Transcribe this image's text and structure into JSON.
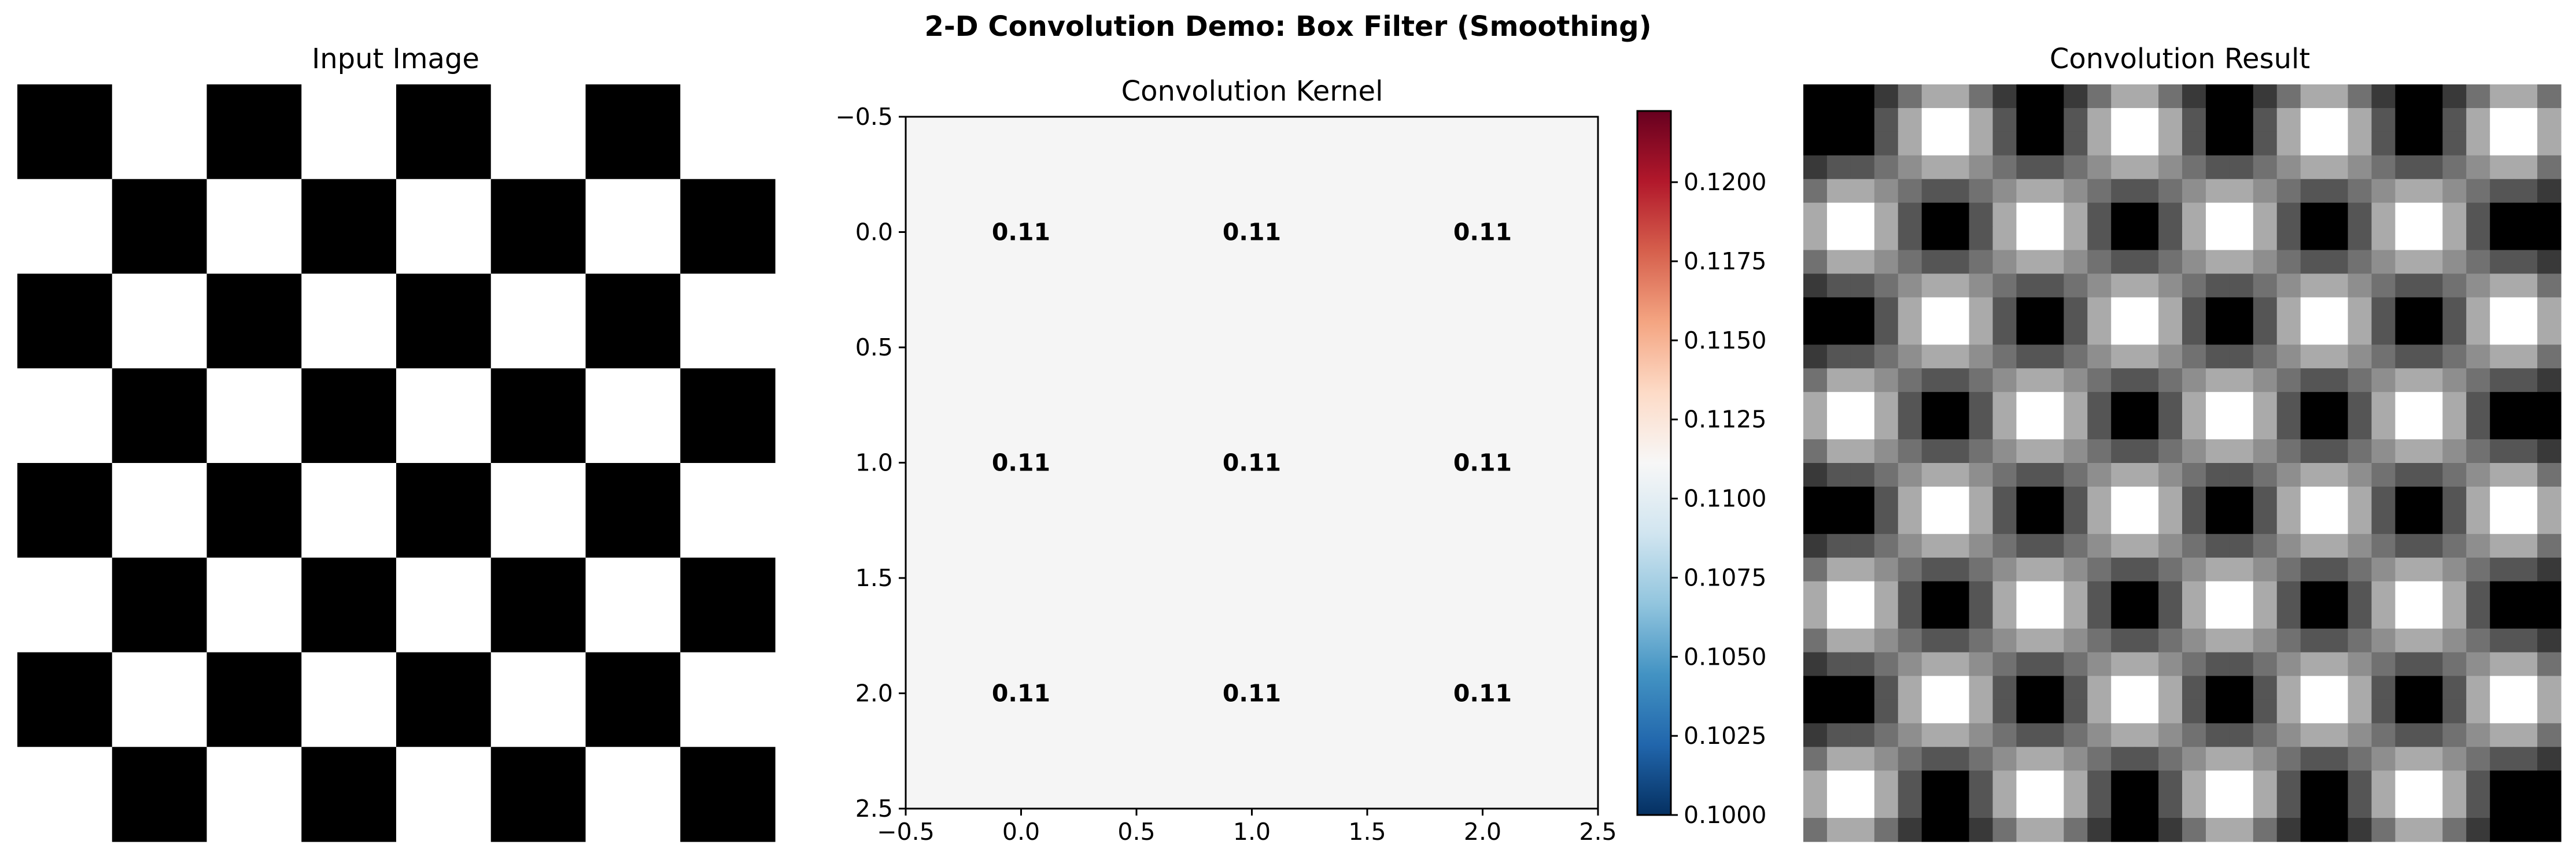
{
  "figure": {
    "title": "2-D Convolution Demo: Box Filter (Smoothing)"
  },
  "chart_data": [
    {
      "type": "heatmap",
      "title": "Input Image",
      "colormap": "gray",
      "axes": "off",
      "rows": 8,
      "cols": 8,
      "values": [
        [
          0,
          1,
          0,
          1,
          0,
          1,
          0,
          1
        ],
        [
          1,
          0,
          1,
          0,
          1,
          0,
          1,
          0
        ],
        [
          0,
          1,
          0,
          1,
          0,
          1,
          0,
          1
        ],
        [
          1,
          0,
          1,
          0,
          1,
          0,
          1,
          0
        ],
        [
          0,
          1,
          0,
          1,
          0,
          1,
          0,
          1
        ],
        [
          1,
          0,
          1,
          0,
          1,
          0,
          1,
          0
        ],
        [
          0,
          1,
          0,
          1,
          0,
          1,
          0,
          1
        ],
        [
          1,
          0,
          1,
          0,
          1,
          0,
          1,
          0
        ]
      ]
    },
    {
      "type": "heatmap",
      "title": "Convolution Kernel",
      "colormap": "RdBu_r",
      "values": [
        [
          0.1111,
          0.1111,
          0.1111
        ],
        [
          0.1111,
          0.1111,
          0.1111
        ],
        [
          0.1111,
          0.1111,
          0.1111
        ]
      ],
      "cell_labels": [
        [
          "0.11",
          "0.11",
          "0.11"
        ],
        [
          "0.11",
          "0.11",
          "0.11"
        ],
        [
          "0.11",
          "0.11",
          "0.11"
        ]
      ],
      "xlim": [
        -0.5,
        2.5
      ],
      "ylim": [
        -0.5,
        2.5
      ],
      "x_ticks": [
        "−0.5",
        "0.0",
        "0.5",
        "1.0",
        "1.5",
        "2.0",
        "2.5"
      ],
      "y_ticks": [
        "−0.5",
        "0.0",
        "0.5",
        "1.0",
        "1.5",
        "2.0",
        "2.5"
      ],
      "colorbar": {
        "range": [
          0.1,
          0.12225
        ],
        "ticks": [
          "0.1000",
          "0.1025",
          "0.1050",
          "0.1075",
          "0.1100",
          "0.1125",
          "0.1150",
          "0.1175",
          "0.1200"
        ]
      }
    },
    {
      "type": "heatmap",
      "title": "Convolution Result",
      "colormap": "gray",
      "axes": "off",
      "cell_pattern": "3x3 box-filter blur of an 8x8 checkerboard (super-sampled 4x)",
      "rows": 32,
      "cols": 32,
      "values": []
    }
  ]
}
